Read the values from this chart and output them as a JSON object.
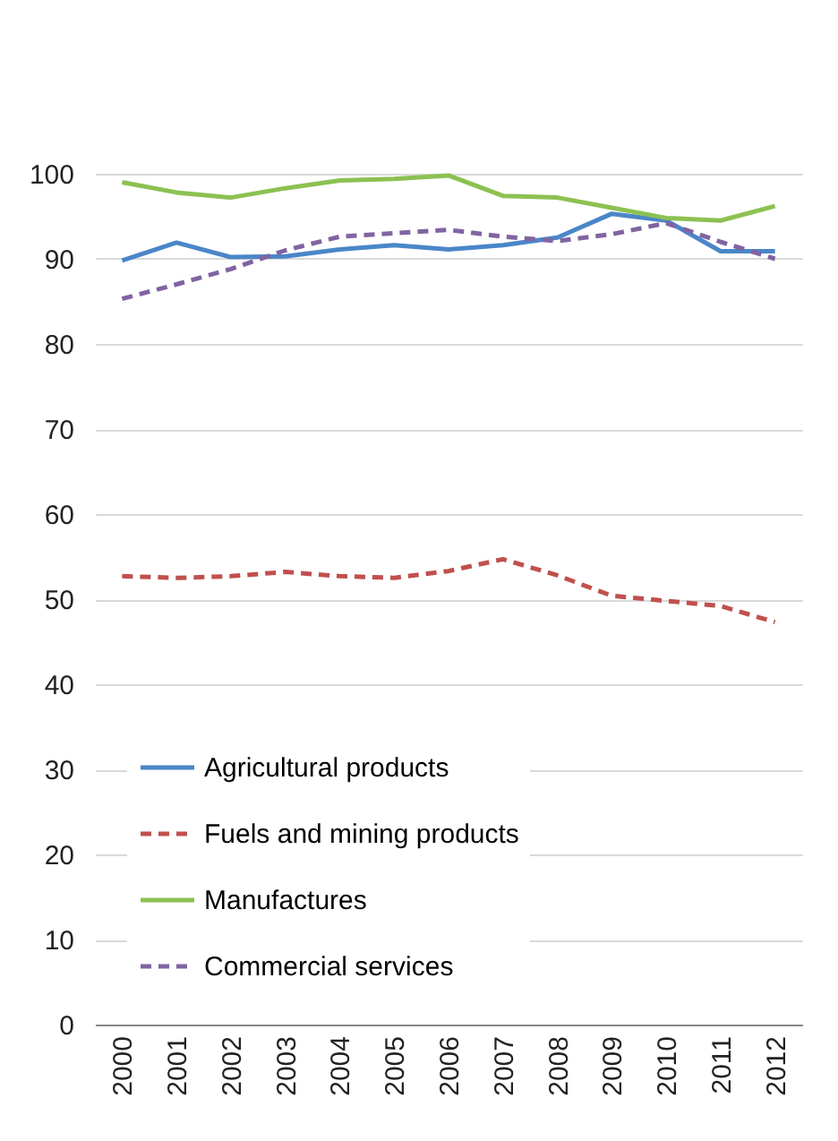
{
  "chart_data": {
    "type": "line",
    "categories": [
      "2000",
      "2001",
      "2002",
      "2003",
      "2004",
      "2005",
      "2006",
      "2007",
      "2008",
      "2009",
      "2010",
      "2011",
      "2012"
    ],
    "series": [
      {
        "name": "Agricultural products",
        "color": "#4a86c8",
        "line_style": "solid",
        "values": [
          89.8,
          91.9,
          90.2,
          90.3,
          91.1,
          91.6,
          91.1,
          91.6,
          92.5,
          95.3,
          94.5,
          90.9,
          90.9
        ]
      },
      {
        "name": "Fuels and mining products",
        "color": "#c0504d",
        "line_style": "dashed",
        "values": [
          52.7,
          52.5,
          52.7,
          53.2,
          52.7,
          52.5,
          53.3,
          54.7,
          52.8,
          50.4,
          49.8,
          49.2,
          47.3
        ]
      },
      {
        "name": "Manufactures",
        "color": "#8cc152",
        "line_style": "solid",
        "values": [
          99.0,
          97.8,
          97.2,
          98.3,
          99.2,
          99.4,
          99.8,
          97.4,
          97.2,
          96.0,
          94.8,
          94.5,
          96.2
        ]
      },
      {
        "name": "Commercial services",
        "color": "#8064a2",
        "line_style": "dashed",
        "values": [
          85.3,
          87.0,
          88.8,
          91.0,
          92.6,
          93.0,
          93.4,
          92.6,
          92.1,
          92.9,
          94.2,
          92.0,
          90.0
        ]
      }
    ],
    "ylim": [
      0,
      100
    ],
    "yticks": [
      0,
      10,
      20,
      30,
      40,
      50,
      60,
      70,
      80,
      90,
      100
    ],
    "grid": "y",
    "legend": "bottom left",
    "marker": "none"
  }
}
